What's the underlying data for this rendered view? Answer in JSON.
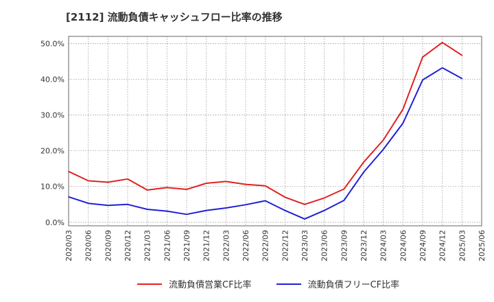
{
  "chart_data": {
    "type": "line",
    "title": "[2112]  流動負債キャッシュフロー比率の推移",
    "xlabel": "",
    "ylabel": "",
    "ylim": [
      -1,
      52
    ],
    "grid": true,
    "legend_position": "bottom",
    "x": [
      "2020/03",
      "2020/06",
      "2020/09",
      "2020/12",
      "2021/03",
      "2021/06",
      "2021/09",
      "2021/12",
      "2022/03",
      "2022/06",
      "2022/09",
      "2022/12",
      "2023/03",
      "2023/06",
      "2023/09",
      "2023/12",
      "2024/03",
      "2024/06",
      "2024/09",
      "2024/12",
      "2025/03",
      "2025/06"
    ],
    "yticks": [
      0,
      10,
      20,
      30,
      40,
      50
    ],
    "ytick_labels": [
      "0.0%",
      "10.0%",
      "20.0%",
      "30.0%",
      "40.0%",
      "50.0%"
    ],
    "series": [
      {
        "name": "流動負債営業CF比率",
        "color": "#e02020",
        "values": [
          14.2,
          11.6,
          11.2,
          12.1,
          9.0,
          9.7,
          9.2,
          10.9,
          11.4,
          10.6,
          10.2,
          7.0,
          5.0,
          6.8,
          9.3,
          16.8,
          23.0,
          31.6,
          46.2,
          50.3,
          46.7,
          null
        ]
      },
      {
        "name": "流動負債フリーCF比率",
        "color": "#1f1fd6",
        "values": [
          7.1,
          5.3,
          4.7,
          5.0,
          3.6,
          3.1,
          2.2,
          3.3,
          4.0,
          4.9,
          6.0,
          3.3,
          0.9,
          3.3,
          6.1,
          14.0,
          20.4,
          27.7,
          39.8,
          43.2,
          40.2,
          null
        ]
      }
    ]
  }
}
